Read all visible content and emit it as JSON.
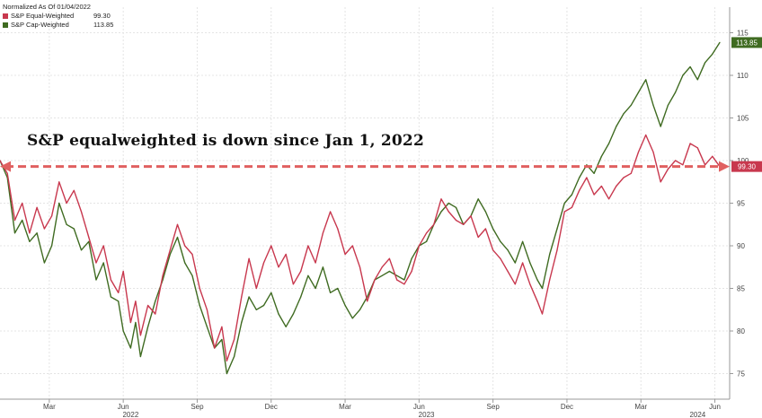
{
  "legend": {
    "header": "Normalized As Of 01/04/2022",
    "items": [
      {
        "name": "S&P Equal-Weighted",
        "value": "99.30",
        "color": "#c8384e"
      },
      {
        "name": "S&P Cap-Weighted",
        "value": "113.85",
        "color": "#3f6b21"
      }
    ]
  },
  "annotation": "S&P equalweighted is down since Jan  1, 2022",
  "chart_data": {
    "type": "line",
    "x_tick_labels": [
      {
        "label": "Mar",
        "t": 2
      },
      {
        "label": "Jun",
        "t": 5
      },
      {
        "label": "Sep",
        "t": 8
      },
      {
        "label": "Dec",
        "t": 11
      },
      {
        "label": "Mar",
        "t": 14
      },
      {
        "label": "Jun",
        "t": 17
      },
      {
        "label": "Sep",
        "t": 20
      },
      {
        "label": "Dec",
        "t": 23
      },
      {
        "label": "Mar",
        "t": 26
      },
      {
        "label": "Jun",
        "t": 29
      }
    ],
    "year_labels": [
      {
        "label": "2022",
        "t": 5.3
      },
      {
        "label": "2023",
        "t": 17.3
      },
      {
        "label": "2024",
        "t": 28.3
      }
    ],
    "y_ticks": [
      75,
      80,
      85,
      90,
      95,
      100,
      105,
      110,
      115
    ],
    "ylim": [
      72,
      118
    ],
    "xlim": [
      0,
      29.6
    ],
    "reference_line": 99.3,
    "series": [
      {
        "name": "S&P Equal-Weighted",
        "color": "#c8384e",
        "last_label": "99.30",
        "points": [
          [
            0,
            100
          ],
          [
            0.3,
            98.5
          ],
          [
            0.6,
            93
          ],
          [
            0.9,
            95
          ],
          [
            1.2,
            91.5
          ],
          [
            1.5,
            94.5
          ],
          [
            1.8,
            92
          ],
          [
            2.1,
            93.5
          ],
          [
            2.4,
            97.5
          ],
          [
            2.7,
            95
          ],
          [
            3.0,
            96.5
          ],
          [
            3.3,
            94
          ],
          [
            3.6,
            91
          ],
          [
            3.9,
            88
          ],
          [
            4.2,
            90
          ],
          [
            4.5,
            86
          ],
          [
            4.8,
            84.5
          ],
          [
            5.0,
            87
          ],
          [
            5.3,
            81
          ],
          [
            5.5,
            83.5
          ],
          [
            5.7,
            79.5
          ],
          [
            6.0,
            83
          ],
          [
            6.3,
            82
          ],
          [
            6.6,
            86.5
          ],
          [
            6.9,
            89.5
          ],
          [
            7.2,
            92.5
          ],
          [
            7.5,
            90
          ],
          [
            7.8,
            89
          ],
          [
            8.1,
            85
          ],
          [
            8.4,
            82.5
          ],
          [
            8.7,
            78
          ],
          [
            9.0,
            80.5
          ],
          [
            9.2,
            76.5
          ],
          [
            9.5,
            79
          ],
          [
            9.8,
            84
          ],
          [
            10.1,
            88.5
          ],
          [
            10.4,
            85
          ],
          [
            10.7,
            88
          ],
          [
            11.0,
            90
          ],
          [
            11.3,
            87.5
          ],
          [
            11.6,
            89
          ],
          [
            11.9,
            85.5
          ],
          [
            12.2,
            87
          ],
          [
            12.5,
            90
          ],
          [
            12.8,
            88
          ],
          [
            13.1,
            91.5
          ],
          [
            13.4,
            94
          ],
          [
            13.7,
            92
          ],
          [
            14.0,
            89
          ],
          [
            14.3,
            90
          ],
          [
            14.6,
            87.5
          ],
          [
            14.9,
            83.5
          ],
          [
            15.2,
            86
          ],
          [
            15.5,
            87.5
          ],
          [
            15.8,
            88.5
          ],
          [
            16.1,
            86
          ],
          [
            16.4,
            85.5
          ],
          [
            16.7,
            87
          ],
          [
            17.0,
            90
          ],
          [
            17.3,
            91.5
          ],
          [
            17.6,
            92.5
          ],
          [
            17.9,
            95.5
          ],
          [
            18.2,
            94
          ],
          [
            18.5,
            93
          ],
          [
            18.8,
            92.5
          ],
          [
            19.1,
            93.5
          ],
          [
            19.4,
            91
          ],
          [
            19.7,
            92
          ],
          [
            20.0,
            89.5
          ],
          [
            20.3,
            88.5
          ],
          [
            20.6,
            87
          ],
          [
            20.9,
            85.5
          ],
          [
            21.2,
            88
          ],
          [
            21.5,
            85.5
          ],
          [
            21.8,
            83.5
          ],
          [
            22.0,
            82
          ],
          [
            22.3,
            86
          ],
          [
            22.6,
            89.5
          ],
          [
            22.9,
            94
          ],
          [
            23.2,
            94.5
          ],
          [
            23.5,
            96.5
          ],
          [
            23.8,
            98
          ],
          [
            24.1,
            96
          ],
          [
            24.4,
            97
          ],
          [
            24.7,
            95.5
          ],
          [
            25.0,
            97
          ],
          [
            25.3,
            98
          ],
          [
            25.6,
            98.5
          ],
          [
            25.9,
            101
          ],
          [
            26.2,
            103
          ],
          [
            26.5,
            101
          ],
          [
            26.8,
            97.5
          ],
          [
            27.1,
            99
          ],
          [
            27.4,
            100
          ],
          [
            27.7,
            99.5
          ],
          [
            28.0,
            102
          ],
          [
            28.3,
            101.5
          ],
          [
            28.6,
            99.5
          ],
          [
            28.9,
            100.5
          ],
          [
            29.2,
            99.3
          ]
        ]
      },
      {
        "name": "S&P Cap-Weighted",
        "color": "#3f6b21",
        "last_label": "113.85",
        "points": [
          [
            0,
            100
          ],
          [
            0.3,
            98
          ],
          [
            0.6,
            91.5
          ],
          [
            0.9,
            93
          ],
          [
            1.2,
            90.5
          ],
          [
            1.5,
            91.5
          ],
          [
            1.8,
            88
          ],
          [
            2.1,
            90
          ],
          [
            2.4,
            95
          ],
          [
            2.7,
            92.5
          ],
          [
            3.0,
            92
          ],
          [
            3.3,
            89.5
          ],
          [
            3.6,
            90.5
          ],
          [
            3.9,
            86
          ],
          [
            4.2,
            88
          ],
          [
            4.5,
            84
          ],
          [
            4.8,
            83.5
          ],
          [
            5.0,
            80
          ],
          [
            5.3,
            78
          ],
          [
            5.5,
            81
          ],
          [
            5.7,
            77
          ],
          [
            6.0,
            80.5
          ],
          [
            6.3,
            83.5
          ],
          [
            6.6,
            86
          ],
          [
            6.9,
            89
          ],
          [
            7.2,
            91
          ],
          [
            7.5,
            88
          ],
          [
            7.8,
            86.5
          ],
          [
            8.1,
            83
          ],
          [
            8.4,
            80.5
          ],
          [
            8.7,
            78
          ],
          [
            9.0,
            79
          ],
          [
            9.2,
            75
          ],
          [
            9.5,
            77
          ],
          [
            9.8,
            81
          ],
          [
            10.1,
            84
          ],
          [
            10.4,
            82.5
          ],
          [
            10.7,
            83
          ],
          [
            11.0,
            84.5
          ],
          [
            11.3,
            82
          ],
          [
            11.6,
            80.5
          ],
          [
            11.9,
            82
          ],
          [
            12.2,
            84
          ],
          [
            12.5,
            86.5
          ],
          [
            12.8,
            85
          ],
          [
            13.1,
            87.5
          ],
          [
            13.4,
            84.5
          ],
          [
            13.7,
            85
          ],
          [
            14.0,
            83
          ],
          [
            14.3,
            81.5
          ],
          [
            14.6,
            82.5
          ],
          [
            14.9,
            84
          ],
          [
            15.2,
            86
          ],
          [
            15.5,
            86.5
          ],
          [
            15.8,
            87
          ],
          [
            16.1,
            86.5
          ],
          [
            16.4,
            86
          ],
          [
            16.7,
            88.5
          ],
          [
            17.0,
            90
          ],
          [
            17.3,
            90.5
          ],
          [
            17.6,
            92.5
          ],
          [
            17.9,
            94
          ],
          [
            18.2,
            95
          ],
          [
            18.5,
            94.5
          ],
          [
            18.8,
            92.5
          ],
          [
            19.1,
            93.5
          ],
          [
            19.4,
            95.5
          ],
          [
            19.7,
            94
          ],
          [
            20.0,
            92
          ],
          [
            20.3,
            90.5
          ],
          [
            20.6,
            89.5
          ],
          [
            20.9,
            88
          ],
          [
            21.2,
            90.5
          ],
          [
            21.5,
            88
          ],
          [
            21.8,
            86
          ],
          [
            22.0,
            85
          ],
          [
            22.3,
            89
          ],
          [
            22.6,
            92
          ],
          [
            22.9,
            95
          ],
          [
            23.2,
            96
          ],
          [
            23.5,
            98
          ],
          [
            23.8,
            99.5
          ],
          [
            24.1,
            98.5
          ],
          [
            24.4,
            100.5
          ],
          [
            24.7,
            102
          ],
          [
            25.0,
            104
          ],
          [
            25.3,
            105.5
          ],
          [
            25.6,
            106.5
          ],
          [
            25.9,
            108
          ],
          [
            26.2,
            109.5
          ],
          [
            26.5,
            106.5
          ],
          [
            26.8,
            104
          ],
          [
            27.1,
            106.5
          ],
          [
            27.4,
            108
          ],
          [
            27.7,
            110
          ],
          [
            28.0,
            111
          ],
          [
            28.3,
            109.5
          ],
          [
            28.6,
            111.5
          ],
          [
            28.9,
            112.5
          ],
          [
            29.2,
            113.85
          ]
        ]
      }
    ]
  }
}
